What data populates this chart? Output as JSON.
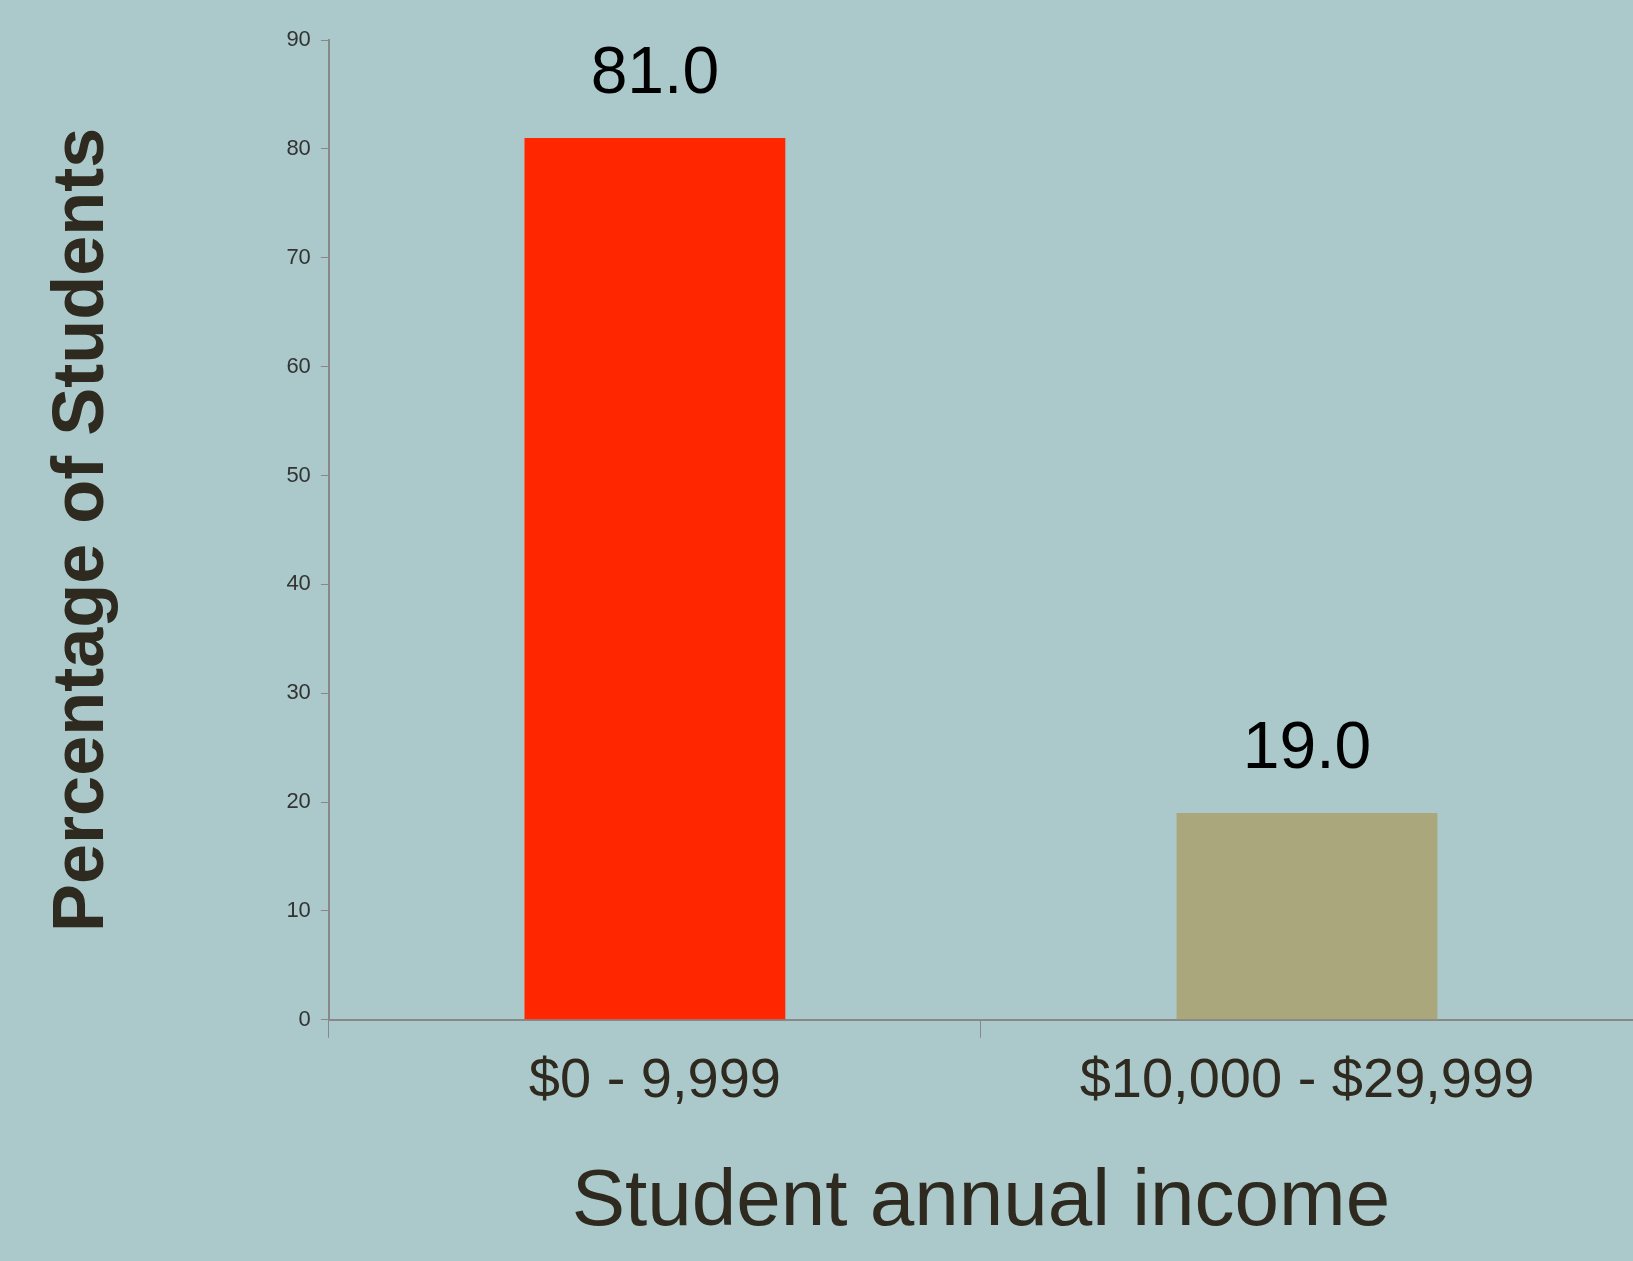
{
  "chart_data": {
    "type": "bar",
    "xlabel": "Student annual income",
    "ylabel": "Percentage of Students",
    "categories": [
      "$0 - 9,999",
      "$10,000 - $29,999"
    ],
    "values": [
      81.0,
      19.0
    ],
    "colors": [
      "#ff2600",
      "#a9a77b"
    ],
    "value_labels": [
      "81.0",
      "19.0"
    ],
    "ylim": [
      0,
      90
    ],
    "yticks": [
      0,
      10,
      20,
      30,
      40,
      50,
      60,
      70,
      80,
      90
    ],
    "grid": false,
    "legend": false
  }
}
